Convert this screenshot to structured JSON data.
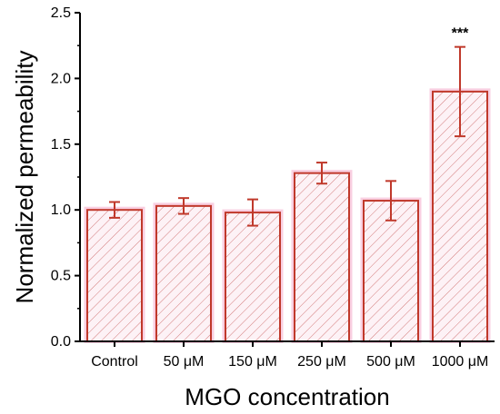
{
  "chart_data": {
    "type": "bar",
    "categories": [
      "Control",
      "50 μM",
      "150 μM",
      "250 μM",
      "500 μM",
      "1000 μM"
    ],
    "values": [
      1.0,
      1.03,
      0.98,
      1.28,
      1.07,
      1.9
    ],
    "errors": [
      0.06,
      0.06,
      0.1,
      0.08,
      0.15,
      0.34
    ],
    "xlabel": "MGO concentration",
    "ylabel": "Normalized permeability",
    "ylim": [
      0,
      2.5
    ],
    "yticks": [
      "0.0",
      "0.5",
      "1.0",
      "1.5",
      "2.0",
      "2.5"
    ],
    "annotations": [
      {
        "category": "1000 μM",
        "text": "***"
      }
    ],
    "grid": false,
    "bar_fill": "#fdf2f6",
    "bar_hatch_color": "#d37c7c",
    "bar_edge_color": "#c0392b",
    "bar_glow_color": "#f4a7c9",
    "error_color": "#c0392b",
    "axis_color": "#000000"
  }
}
